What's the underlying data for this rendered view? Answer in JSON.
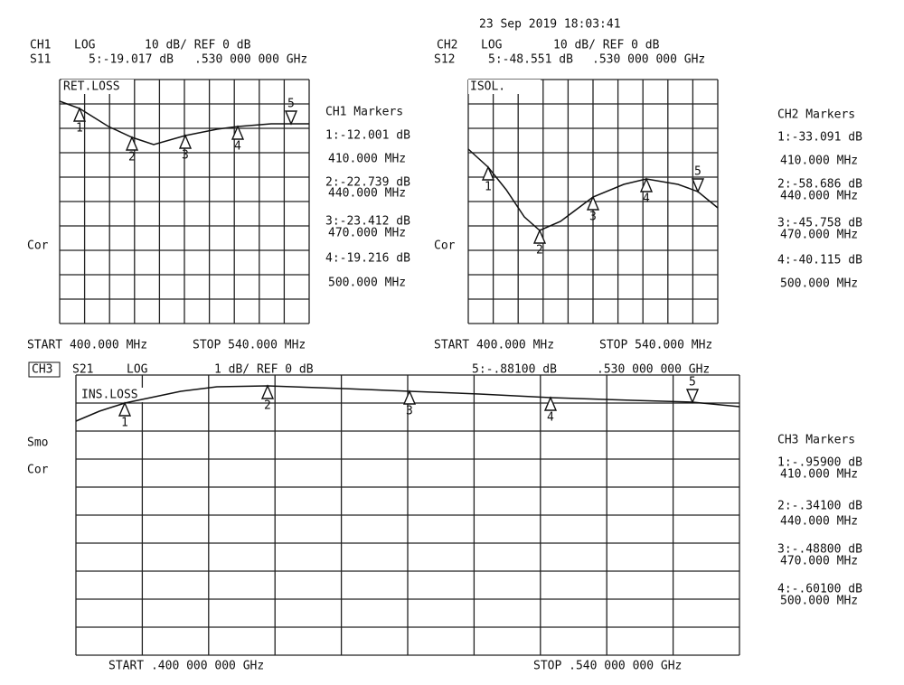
{
  "timestamp": "23 Sep 2019  18:03:41",
  "channels": [
    {
      "channel": "CH1",
      "format": "LOG",
      "scale": "10 dB/ REF 0 dB",
      "param": "S11",
      "marker5": "5:-19.017 dB",
      "marker5_freq": ".530 000 000 GHz",
      "trace_label": "RET.LOSS",
      "status": [
        "Cor"
      ],
      "markers_title": "CH1 Markers",
      "markers": [
        {
          "value": "1:-12.001 dB",
          "freq": "410.000 MHz"
        },
        {
          "value": "2:-22.739 dB",
          "freq": "440.000 MHz"
        },
        {
          "value": "3:-23.412 dB",
          "freq": "470.000 MHz"
        },
        {
          "value": "4:-19.216 dB",
          "freq": "500.000 MHz"
        }
      ],
      "marker_ids": [
        "1",
        "2",
        "3",
        "4",
        "5"
      ],
      "start": "START 400.000 MHz",
      "stop": "STOP 540.000 MHz"
    },
    {
      "channel": "CH2",
      "format": "LOG",
      "scale": "10 dB/ REF 0 dB",
      "param": "S12",
      "marker5": "5:-48.551 dB",
      "marker5_freq": ".530 000 000 GHz",
      "trace_label": "ISOL.",
      "status": [
        "Cor"
      ],
      "markers_title": "CH2 Markers",
      "markers": [
        {
          "value": "1:-33.091 dB",
          "freq": "410.000 MHz"
        },
        {
          "value": "2:-58.686 dB",
          "freq": "440.000 MHz"
        },
        {
          "value": "3:-45.758 dB",
          "freq": "470.000 MHz"
        },
        {
          "value": "4:-40.115 dB",
          "freq": "500.000 MHz"
        }
      ],
      "marker_ids": [
        "1",
        "2",
        "3",
        "4",
        "5"
      ],
      "start": "START 400.000 MHz",
      "stop": "STOP 540.000 MHz"
    },
    {
      "channel": "CH3",
      "format": "LOG",
      "scale": "1 dB/ REF 0 dB",
      "param": "S21",
      "marker5": "5:-.88100 dB",
      "marker5_freq": ".530 000 000 GHz",
      "trace_label": "INS.LOSS",
      "status": [
        "Smo",
        "Cor"
      ],
      "markers_title": "CH3 Markers",
      "markers": [
        {
          "value": "1:-.95900 dB",
          "freq": "410.000 MHz"
        },
        {
          "value": "2:-.34100 dB",
          "freq": "440.000 MHz"
        },
        {
          "value": "3:-.48800 dB",
          "freq": "470.000 MHz"
        },
        {
          "value": "4:-.60100 dB",
          "freq": "500.000 MHz"
        }
      ],
      "marker_ids": [
        "1",
        "2",
        "3",
        "4",
        "5"
      ],
      "start": "START .400 000 000 GHz",
      "stop": "STOP .540 000 000 GHz"
    }
  ]
}
